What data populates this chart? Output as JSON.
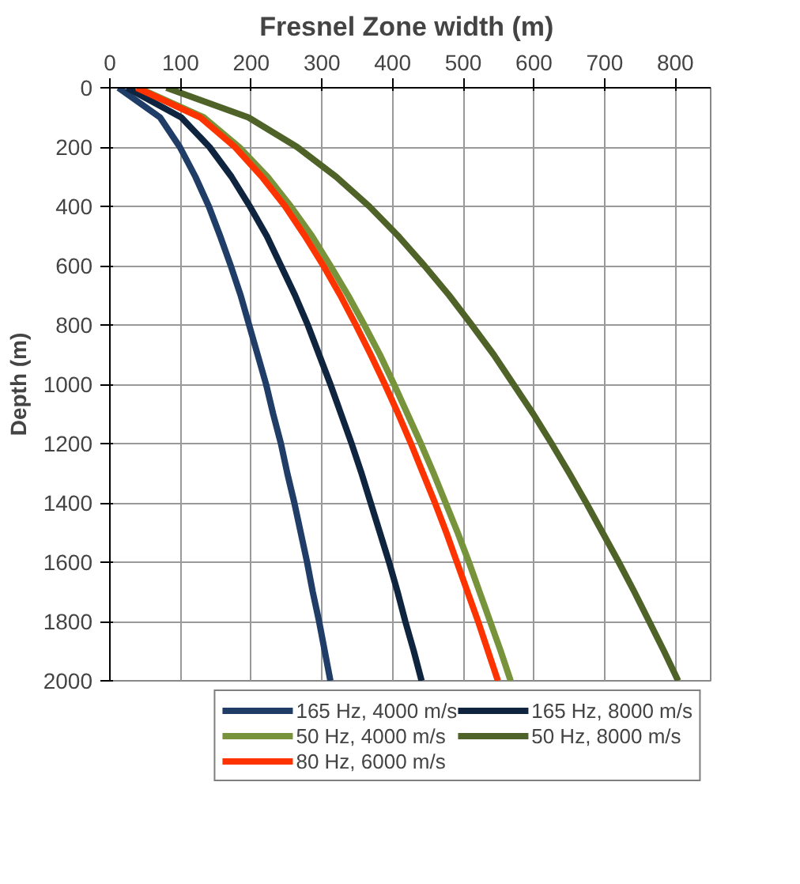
{
  "chart_data": {
    "type": "line",
    "title": "Fresnel  Zone width (m)",
    "ylabel": "Depth (m)",
    "xlim": [
      0,
      850
    ],
    "xticks": [
      0,
      100,
      200,
      300,
      400,
      500,
      600,
      700,
      800
    ],
    "ylim": [
      2000,
      0
    ],
    "yticks": [
      0,
      200,
      400,
      600,
      800,
      1000,
      1200,
      1400,
      1600,
      1800,
      2000
    ],
    "grid": true,
    "legend": "bottom",
    "marker": "none",
    "line_style": "solid",
    "series": [
      {
        "name": "165 Hz, 4000 m/s",
        "color": "#1f3d66",
        "x": [
          12,
          71,
          99,
          121,
          140,
          156,
          171,
          185,
          197,
          209,
          221,
          231,
          242,
          251,
          261,
          270,
          279,
          287,
          296,
          304,
          312
        ],
        "values": [
          0,
          100,
          200,
          300,
          400,
          500,
          600,
          700,
          800,
          900,
          1000,
          1100,
          1200,
          1300,
          1400,
          1500,
          1600,
          1700,
          1800,
          1900,
          2000
        ]
      },
      {
        "name": "165 Hz, 8000 m/s",
        "color": "#0f243e",
        "x": [
          24,
          101,
          141,
          172,
          198,
          222,
          242,
          262,
          280,
          296,
          312,
          327,
          342,
          356,
          369,
          382,
          395,
          407,
          418,
          430,
          441
        ],
        "values": [
          0,
          100,
          200,
          300,
          400,
          500,
          600,
          700,
          800,
          900,
          1000,
          1100,
          1200,
          1300,
          1400,
          1500,
          1600,
          1700,
          1800,
          1900,
          2000
        ]
      },
      {
        "name": "50 Hz, 4000 m/s",
        "color": "#77933c",
        "x": [
          40,
          133,
          183,
          223,
          256,
          286,
          312,
          337,
          360,
          382,
          402,
          421,
          440,
          458,
          475,
          492,
          508,
          523,
          538,
          553,
          567
        ],
        "values": [
          0,
          100,
          200,
          300,
          400,
          500,
          600,
          700,
          800,
          900,
          1000,
          1100,
          1200,
          1300,
          1400,
          1500,
          1600,
          1700,
          1800,
          1900,
          2000
        ]
      },
      {
        "name": "50 Hz, 8000 m/s",
        "color": "#4f6228",
        "x": [
          80,
          196,
          265,
          320,
          367,
          408,
          445,
          480,
          512,
          543,
          571,
          599,
          625,
          650,
          674,
          697,
          720,
          742,
          763,
          784,
          804
        ],
        "values": [
          0,
          100,
          200,
          300,
          400,
          500,
          600,
          700,
          800,
          900,
          1000,
          1100,
          1200,
          1300,
          1400,
          1500,
          1600,
          1700,
          1800,
          1900,
          2000
        ]
      },
      {
        "name": "80 Hz, 6000 m/s",
        "color": "#ff3300",
        "x": [
          38,
          128,
          177,
          215,
          248,
          276,
          302,
          326,
          348,
          369,
          389,
          408,
          426,
          443,
          460,
          476,
          491,
          506,
          521,
          535,
          549
        ],
        "values": [
          0,
          100,
          200,
          300,
          400,
          500,
          600,
          700,
          800,
          900,
          1000,
          1100,
          1200,
          1300,
          1400,
          1500,
          1600,
          1700,
          1800,
          1900,
          2000
        ]
      }
    ]
  }
}
